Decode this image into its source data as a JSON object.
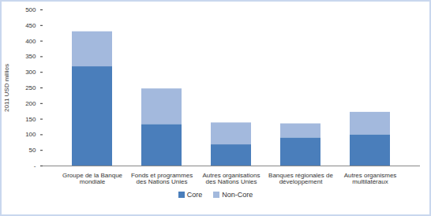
{
  "chart_data": {
    "type": "bar",
    "stacked": true,
    "y_label": "2011 USD millios",
    "categories": [
      "Groupe de la Banque mondiale",
      "Fonds et programmes des Nations Unies",
      "Autres organisations des Nations Unies",
      "Banques régionales de développement",
      "Autres organismes multilatéraux"
    ],
    "series": [
      {
        "name": "Core",
        "color": "#4a7ebb",
        "values": [
          318,
          133,
          68,
          90,
          100
        ]
      },
      {
        "name": "Non-Core",
        "color": "#a3b9dd",
        "values": [
          112,
          114,
          70,
          45,
          72
        ]
      }
    ],
    "ylim": [
      0,
      500
    ],
    "yticks": [
      {
        "value": 0,
        "label": "-"
      },
      50,
      100,
      150,
      200,
      250,
      300,
      350,
      400,
      450,
      500
    ],
    "grid": false,
    "legend": "bottom"
  }
}
